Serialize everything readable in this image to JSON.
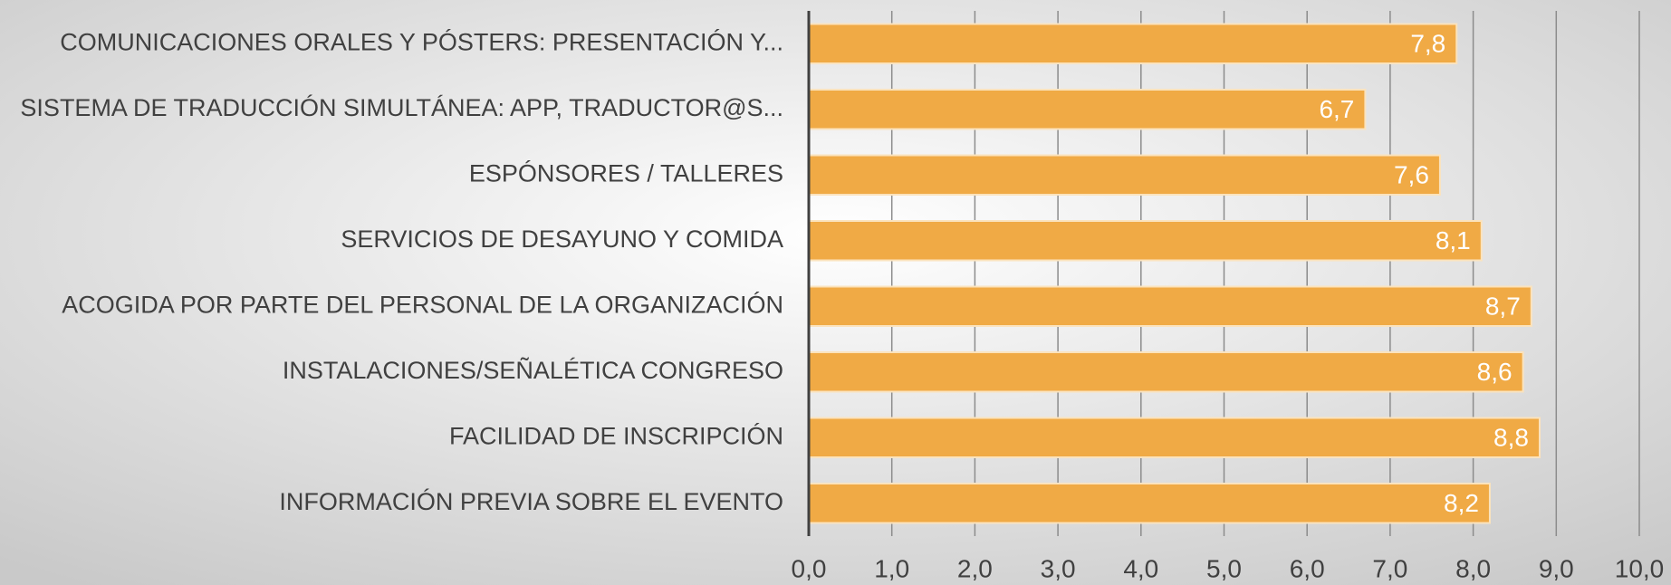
{
  "chart_data": {
    "type": "bar",
    "orientation": "horizontal",
    "categories": [
      "COMUNICACIONES ORALES Y PÓSTERS: PRESENTACIÓN Y...",
      "SISTEMA DE TRADUCCIÓN SIMULTÁNEA: APP, TRADUCTOR@S...",
      "ESPÓNSORES / TALLERES",
      "SERVICIOS DE DESAYUNO Y COMIDA",
      "ACOGIDA POR PARTE DEL PERSONAL DE LA ORGANIZACIÓN",
      "INSTALACIONES/SEÑALÉTICA CONGRESO",
      "FACILIDAD DE INSCRIPCIÓN",
      "INFORMACIÓN PREVIA SOBRE EL EVENTO"
    ],
    "values": [
      7.8,
      6.7,
      7.6,
      8.1,
      8.7,
      8.6,
      8.8,
      8.2
    ],
    "value_labels": [
      "7,8",
      "6,7",
      "7,6",
      "8,1",
      "8,7",
      "8,6",
      "8,8",
      "8,2"
    ],
    "color": "#f0aa45",
    "xlim": [
      0,
      10
    ],
    "xticks": [
      {
        "value": 0,
        "label": "0,0"
      },
      {
        "value": 1,
        "label": "1,0"
      },
      {
        "value": 2,
        "label": "2,0"
      },
      {
        "value": 3,
        "label": "3,0"
      },
      {
        "value": 4,
        "label": "4,0"
      },
      {
        "value": 5,
        "label": "5,0"
      },
      {
        "value": 6,
        "label": "6,0"
      },
      {
        "value": 7,
        "label": "7,0"
      },
      {
        "value": 8,
        "label": "8,0"
      },
      {
        "value": 9,
        "label": "9,0"
      },
      {
        "value": 10,
        "label": "10,0"
      }
    ],
    "grid": true
  }
}
